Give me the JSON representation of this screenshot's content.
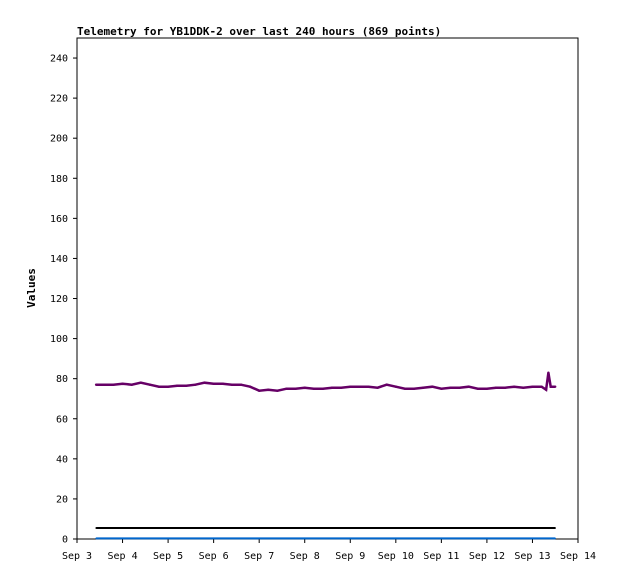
{
  "chart_data": {
    "type": "line",
    "title": "Telemetry for YB1DDK-2 over last 240 hours (869 points)",
    "xlabel": "",
    "ylabel": "Values",
    "x_tick_labels": [
      "Sep 3",
      "Sep 4",
      "Sep 5",
      "Sep 6",
      "Sep 7",
      "Sep 8",
      "Sep 9",
      "Sep 10",
      "Sep 11",
      "Sep 12",
      "Sep 13",
      "Sep 14"
    ],
    "xlim": [
      "Sep 3",
      "Sep 14"
    ],
    "ylim": [
      0,
      250
    ],
    "y_ticks": [
      0,
      20,
      40,
      60,
      80,
      100,
      120,
      140,
      160,
      180,
      200,
      220,
      240
    ],
    "grid": false,
    "legend": "none",
    "series": [
      {
        "color": "#660066",
        "x": [
          3.42,
          3.6,
          3.8,
          4.0,
          4.2,
          4.4,
          4.6,
          4.8,
          5.0,
          5.2,
          5.4,
          5.6,
          5.8,
          6.0,
          6.2,
          6.4,
          6.6,
          6.8,
          7.0,
          7.2,
          7.4,
          7.6,
          7.8,
          8.0,
          8.2,
          8.4,
          8.6,
          8.8,
          9.0,
          9.2,
          9.4,
          9.6,
          9.8,
          10.0,
          10.2,
          10.4,
          10.6,
          10.8,
          11.0,
          11.2,
          11.4,
          11.6,
          11.8,
          12.0,
          12.2,
          12.4,
          12.6,
          12.8,
          13.0,
          13.2,
          13.3,
          13.35,
          13.4,
          13.5
        ],
        "y": [
          77,
          77,
          77,
          77.5,
          77,
          78,
          77,
          76,
          76,
          76.5,
          76.5,
          77,
          78,
          77.5,
          77.5,
          77,
          77,
          76,
          74,
          74.5,
          74,
          75,
          75,
          75.5,
          75,
          75,
          75.5,
          75.5,
          76,
          76,
          76,
          75.5,
          77,
          76,
          75,
          75,
          75.5,
          76,
          75,
          75.5,
          75.5,
          76,
          75,
          75,
          75.5,
          75.5,
          76,
          75.5,
          76,
          76,
          74.5,
          83,
          76,
          76
        ]
      },
      {
        "color": "#000000",
        "x": [
          3.42,
          13.5
        ],
        "y": [
          5.5,
          5.5
        ]
      },
      {
        "color": "#0066cc",
        "x": [
          3.42,
          13.5
        ],
        "y": [
          0.3,
          0.3
        ]
      }
    ]
  }
}
